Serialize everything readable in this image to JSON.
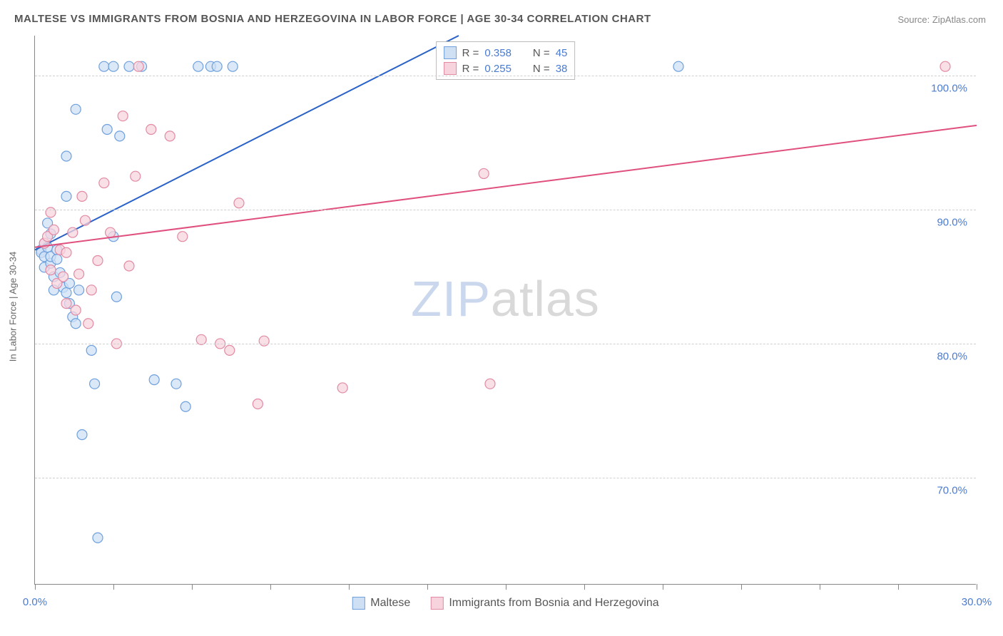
{
  "title": "MALTESE VS IMMIGRANTS FROM BOSNIA AND HERZEGOVINA IN LABOR FORCE | AGE 30-34 CORRELATION CHART",
  "source_label": "Source: ",
  "source_value": "ZipAtlas.com",
  "y_axis_label": "In Labor Force | Age 30-34",
  "watermark_a": "ZIP",
  "watermark_b": "atlas",
  "chart": {
    "type": "scatter",
    "xlim": [
      0,
      30
    ],
    "ylim": [
      62,
      103
    ],
    "x_ticks": [
      0,
      2.5,
      5,
      7.5,
      10,
      12.5,
      15,
      17.5,
      20,
      22.5,
      25,
      27.5,
      30
    ],
    "x_tick_labels": {
      "0": "0.0%",
      "30": "30.0%"
    },
    "y_gridlines": [
      70,
      80,
      90,
      100
    ],
    "y_tick_labels": [
      "70.0%",
      "80.0%",
      "90.0%",
      "100.0%"
    ],
    "background_color": "#ffffff",
    "grid_color": "#d0d0d0",
    "axis_color": "#888888",
    "marker_radius": 7,
    "marker_stroke_width": 1.2,
    "line_width": 2,
    "series": [
      {
        "name": "Maltese",
        "fill": "#cfe0f5",
        "stroke": "#6fa0dd",
        "line_color": "#2a62c8",
        "r_label": "R = ",
        "r_value": "0.358",
        "n_label": "N = ",
        "n_value": "45",
        "trend": {
          "x1": 0,
          "y1": 87,
          "x2": 13.5,
          "y2": 103
        },
        "points": [
          [
            0.2,
            87.0
          ],
          [
            0.2,
            86.8
          ],
          [
            0.3,
            86.5
          ],
          [
            0.3,
            87.5
          ],
          [
            0.3,
            85.7
          ],
          [
            0.4,
            87.2
          ],
          [
            0.4,
            89.0
          ],
          [
            0.5,
            86.0
          ],
          [
            0.5,
            86.5
          ],
          [
            0.5,
            88.2
          ],
          [
            0.6,
            85.0
          ],
          [
            0.6,
            84.0
          ],
          [
            0.7,
            87.0
          ],
          [
            0.7,
            86.3
          ],
          [
            0.8,
            85.3
          ],
          [
            0.9,
            84.2
          ],
          [
            1.0,
            83.8
          ],
          [
            1.0,
            91.0
          ],
          [
            1.0,
            94.0
          ],
          [
            1.1,
            83.0
          ],
          [
            1.1,
            84.5
          ],
          [
            1.2,
            82.0
          ],
          [
            1.3,
            81.5
          ],
          [
            1.3,
            97.5
          ],
          [
            1.4,
            84.0
          ],
          [
            1.5,
            73.2
          ],
          [
            1.8,
            79.5
          ],
          [
            1.9,
            77.0
          ],
          [
            2.0,
            65.5
          ],
          [
            2.2,
            100.7
          ],
          [
            2.3,
            96.0
          ],
          [
            2.5,
            100.7
          ],
          [
            2.5,
            88.0
          ],
          [
            2.6,
            83.5
          ],
          [
            2.7,
            95.5
          ],
          [
            3.0,
            100.7
          ],
          [
            3.4,
            100.7
          ],
          [
            3.8,
            77.3
          ],
          [
            4.5,
            77.0
          ],
          [
            4.8,
            75.3
          ],
          [
            5.2,
            100.7
          ],
          [
            5.6,
            100.7
          ],
          [
            5.8,
            100.7
          ],
          [
            6.3,
            100.7
          ],
          [
            20.5,
            100.7
          ]
        ]
      },
      {
        "name": "Immigrants from Bosnia and Herzegovina",
        "fill": "#f7d4dd",
        "stroke": "#e28aa3",
        "line_color": "#e0507e",
        "r_label": "R = ",
        "r_value": "0.255",
        "n_label": "N = ",
        "n_value": "38",
        "trend": {
          "x1": 0,
          "y1": 87.2,
          "x2": 30,
          "y2": 96.3
        },
        "points": [
          [
            0.3,
            87.5
          ],
          [
            0.4,
            88.0
          ],
          [
            0.5,
            85.5
          ],
          [
            0.5,
            89.8
          ],
          [
            0.6,
            88.5
          ],
          [
            0.7,
            84.5
          ],
          [
            0.8,
            87.0
          ],
          [
            0.9,
            85.0
          ],
          [
            1.0,
            83.0
          ],
          [
            1.0,
            86.8
          ],
          [
            1.2,
            88.3
          ],
          [
            1.3,
            82.5
          ],
          [
            1.4,
            85.2
          ],
          [
            1.5,
            91.0
          ],
          [
            1.6,
            89.2
          ],
          [
            1.7,
            81.5
          ],
          [
            1.8,
            84.0
          ],
          [
            2.0,
            86.2
          ],
          [
            2.2,
            92.0
          ],
          [
            2.4,
            88.3
          ],
          [
            2.6,
            80.0
          ],
          [
            2.8,
            97.0
          ],
          [
            3.0,
            85.8
          ],
          [
            3.2,
            92.5
          ],
          [
            3.3,
            100.7
          ],
          [
            3.7,
            96.0
          ],
          [
            4.3,
            95.5
          ],
          [
            4.7,
            88.0
          ],
          [
            5.3,
            80.3
          ],
          [
            5.9,
            80.0
          ],
          [
            6.2,
            79.5
          ],
          [
            6.5,
            90.5
          ],
          [
            7.1,
            75.5
          ],
          [
            7.3,
            80.2
          ],
          [
            9.8,
            76.7
          ],
          [
            14.3,
            92.7
          ],
          [
            14.5,
            77.0
          ],
          [
            29.0,
            100.7
          ]
        ]
      }
    ]
  },
  "legend_bottom": [
    {
      "label": "Maltese",
      "fill": "#cfe0f5",
      "stroke": "#6fa0dd"
    },
    {
      "label": "Immigrants from Bosnia and Herzegovina",
      "fill": "#f7d4dd",
      "stroke": "#e28aa3"
    }
  ]
}
